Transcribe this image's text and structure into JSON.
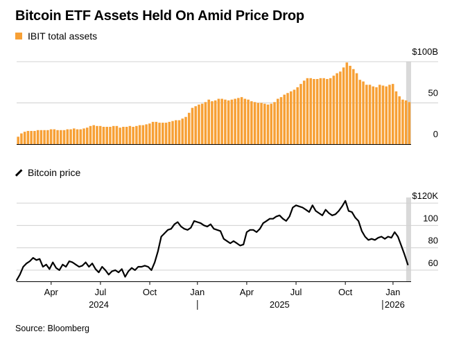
{
  "title": "Bitcoin ETF Assets Held On Amid Price Drop",
  "source": "Source: Bloomberg",
  "colors": {
    "bar": "#f7a035",
    "line": "#000000",
    "highlight": "#d9d9d9",
    "grid": "#d0d0d0"
  },
  "chart_data": [
    {
      "type": "bar",
      "title": "IBIT total assets",
      "legend": "IBIT total assets",
      "ylim": [
        0,
        100
      ],
      "yticks": [
        {
          "value": 100,
          "label": "$100B"
        },
        {
          "value": 50,
          "label": "50"
        },
        {
          "value": 0,
          "label": "0"
        }
      ],
      "highlight": [
        23.7,
        24.0
      ],
      "x": [
        0,
        0.2,
        0.4,
        0.6,
        0.8,
        1,
        1.2,
        1.4,
        1.6,
        1.8,
        2,
        2.2,
        2.4,
        2.6,
        2.8,
        3,
        3.2,
        3.4,
        3.6,
        3.8,
        4,
        4.2,
        4.4,
        4.6,
        4.8,
        5,
        5.2,
        5.4,
        5.6,
        5.8,
        6,
        6.2,
        6.4,
        6.6,
        6.8,
        7,
        7.2,
        7.4,
        7.6,
        7.8,
        8,
        8.2,
        8.4,
        8.6,
        8.8,
        9,
        9.2,
        9.4,
        9.6,
        9.8,
        10,
        10.2,
        10.4,
        10.6,
        10.8,
        11,
        11.2,
        11.4,
        11.6,
        11.8,
        12,
        12.2,
        12.4,
        12.6,
        12.8,
        13,
        13.2,
        13.4,
        13.6,
        13.8,
        14,
        14.2,
        14.4,
        14.6,
        14.8,
        15,
        15.2,
        15.4,
        15.6,
        15.8,
        16,
        16.2,
        16.4,
        16.6,
        16.8,
        17,
        17.2,
        17.4,
        17.6,
        17.8,
        18,
        18.2,
        18.4,
        18.6,
        18.8,
        19,
        19.2,
        19.4,
        19.6,
        19.8,
        20,
        20.2,
        20.4,
        20.6,
        20.8,
        21,
        21.2,
        21.4,
        21.6,
        21.8,
        22,
        22.2,
        22.4,
        22.6,
        22.8,
        23,
        23.2,
        23.4,
        23.6,
        23.8
      ],
      "values": [
        9,
        13,
        15,
        16,
        16,
        16,
        17,
        17,
        17,
        17,
        18,
        18,
        17,
        17,
        17,
        18,
        18,
        19,
        18,
        18,
        19,
        20,
        22,
        23,
        22,
        22,
        21,
        21,
        21,
        22,
        22,
        20,
        21,
        21,
        22,
        21,
        22,
        23,
        23,
        24,
        25,
        27,
        27,
        26,
        26,
        26,
        27,
        28,
        29,
        29,
        31,
        33,
        38,
        44,
        46,
        48,
        49,
        51,
        54,
        52,
        53,
        55,
        55,
        54,
        53,
        54,
        55,
        56,
        57,
        55,
        54,
        52,
        51,
        50,
        50,
        49,
        48,
        49,
        51,
        55,
        57,
        60,
        62,
        64,
        66,
        69,
        73,
        77,
        80,
        80,
        79,
        79,
        80,
        80,
        79,
        80,
        83,
        86,
        88,
        93,
        99,
        95,
        91,
        86,
        78,
        76,
        72,
        72,
        70,
        69,
        72,
        71,
        70,
        72,
        73,
        64,
        58,
        54,
        53,
        51
      ]
    },
    {
      "type": "line",
      "title": "Bitcoin price",
      "legend": "Bitcoin price",
      "ylim": [
        50,
        125
      ],
      "yticks": [
        {
          "value": 120,
          "label": "$120K"
        },
        {
          "value": 100,
          "label": "100"
        },
        {
          "value": 80,
          "label": "80"
        },
        {
          "value": 60,
          "label": "60"
        }
      ],
      "highlight": [
        23.7,
        24.0
      ],
      "xlabels": [
        "Apr",
        "Jul",
        "Oct",
        "Jan",
        "Apr",
        "Jul",
        "Oct",
        "Jan"
      ],
      "xlabel_positions": [
        2.1,
        5.1,
        8.1,
        11.0,
        14.0,
        17.0,
        20.0,
        22.9
      ],
      "years": [
        "2024",
        "2025",
        "2026"
      ],
      "year_positions": [
        5.0,
        16.0,
        23.85
      ],
      "x": [
        0,
        0.2,
        0.4,
        0.6,
        0.8,
        1,
        1.2,
        1.4,
        1.6,
        1.8,
        2,
        2.2,
        2.4,
        2.6,
        2.8,
        3,
        3.2,
        3.4,
        3.6,
        3.8,
        4,
        4.2,
        4.4,
        4.6,
        4.8,
        5,
        5.2,
        5.4,
        5.6,
        5.8,
        6,
        6.2,
        6.4,
        6.6,
        6.8,
        7,
        7.2,
        7.4,
        7.6,
        7.8,
        8,
        8.2,
        8.4,
        8.6,
        8.8,
        9,
        9.2,
        9.4,
        9.6,
        9.8,
        10,
        10.2,
        10.4,
        10.6,
        10.8,
        11,
        11.2,
        11.4,
        11.6,
        11.8,
        12,
        12.2,
        12.4,
        12.6,
        12.8,
        13,
        13.2,
        13.4,
        13.6,
        13.8,
        14,
        14.2,
        14.4,
        14.6,
        14.8,
        15,
        15.2,
        15.4,
        15.6,
        15.8,
        16,
        16.2,
        16.4,
        16.6,
        16.8,
        17,
        17.2,
        17.4,
        17.6,
        17.8,
        18,
        18.2,
        18.4,
        18.6,
        18.8,
        19,
        19.2,
        19.4,
        19.6,
        19.8,
        20,
        20.2,
        20.4,
        20.6,
        20.8,
        21,
        21.2,
        21.4,
        21.6,
        21.8,
        22,
        22.2,
        22.4,
        22.6,
        22.8,
        23,
        23.2,
        23.4,
        23.6,
        23.8
      ],
      "values": [
        51,
        56,
        63,
        66,
        68,
        71,
        69,
        70,
        63,
        65,
        61,
        67,
        62,
        60,
        65,
        63,
        68,
        67,
        65,
        63,
        64,
        67,
        63,
        66,
        61,
        58,
        63,
        60,
        56,
        59,
        60,
        58,
        61,
        54,
        59,
        62,
        60,
        63,
        63,
        64,
        63,
        60,
        67,
        77,
        90,
        93,
        96,
        97,
        101,
        103,
        99,
        97,
        96,
        98,
        104,
        103,
        102,
        100,
        99,
        101,
        97,
        96,
        95,
        88,
        86,
        84,
        86,
        84,
        82,
        83,
        94,
        96,
        96,
        94,
        97,
        102,
        104,
        106,
        106,
        108,
        109,
        106,
        104,
        108,
        116,
        118,
        117,
        116,
        114,
        112,
        118,
        113,
        111,
        109,
        114,
        111,
        109,
        110,
        113,
        117,
        122,
        113,
        112,
        107,
        104,
        95,
        90,
        87,
        88,
        87,
        89,
        90,
        88,
        90,
        89,
        94,
        90,
        82,
        74,
        65
      ]
    }
  ]
}
